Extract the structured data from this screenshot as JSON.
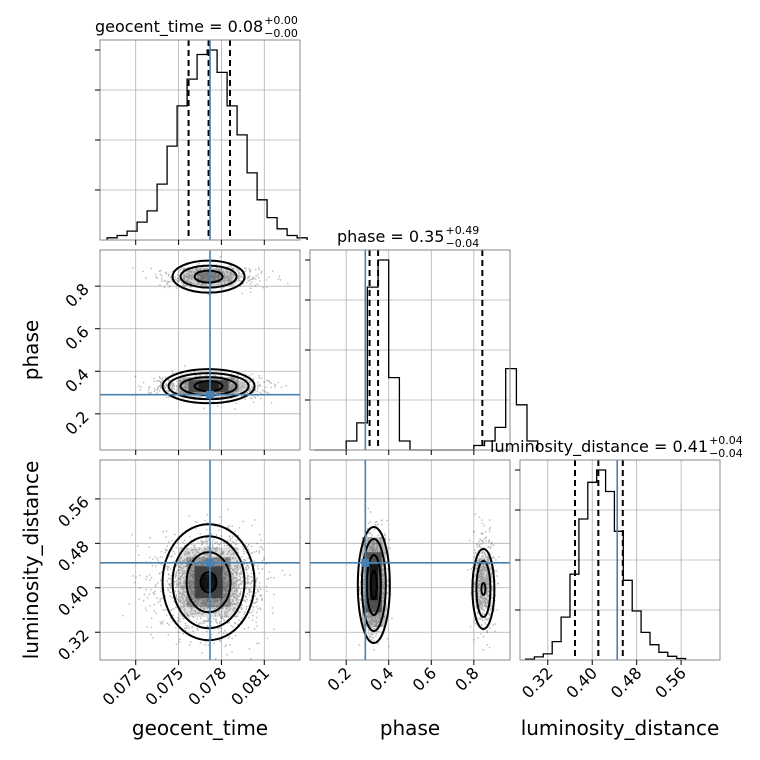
{
  "chart_data": {
    "type": "corner",
    "parameters": [
      "geocent_time",
      "phase",
      "luminosity_distance"
    ],
    "truth": {
      "geocent_time": 0.0772,
      "phase": 0.29,
      "luminosity_distance": 0.445
    },
    "colors": {
      "truth": "#4682b4",
      "hist": "#000000",
      "grid": "#b0b0b0",
      "scatter": "#333333"
    },
    "titles": [
      {
        "param": "geocent_time",
        "prefix": "geocent_time = 0.08",
        "plus": "+0.00",
        "minus": "−0.00"
      },
      {
        "param": "phase",
        "prefix": "phase = 0.35",
        "plus": "+0.49",
        "minus": "−0.04"
      },
      {
        "param": "luminosity_distance",
        "prefix": "luminosity_distance = 0.41",
        "plus": "+0.04",
        "minus": "−0.04"
      }
    ],
    "ranges": {
      "geocent_time": [
        0.0695,
        0.0835
      ],
      "phase": [
        0.03,
        0.97
      ],
      "luminosity_distance": [
        0.27,
        0.63
      ]
    },
    "ticks": {
      "geocent_time": [
        "0.072",
        "0.075",
        "0.078",
        "0.081"
      ],
      "phase_x": [
        "0.2",
        "0.4",
        "0.6",
        "0.8"
      ],
      "phase_y": [
        "0.2",
        "0.4",
        "0.6",
        "0.8"
      ],
      "luminosity_distance": [
        "0.32",
        "0.40",
        "0.48",
        "0.56"
      ]
    },
    "xlabels": [
      "geocent_time",
      "phase",
      "luminosity_distance"
    ],
    "ylabels": [
      "phase",
      "luminosity_distance"
    ],
    "marginals": {
      "geocent_time": {
        "edges_start": 0.07,
        "bin_width": 0.0007,
        "counts": [
          1,
          2,
          4,
          8,
          13,
          25,
          42,
          60,
          72,
          83,
          85,
          75,
          60,
          47,
          30,
          18,
          10,
          5,
          2,
          1
        ],
        "quantiles": [
          0.0757,
          0.0771,
          0.0786
        ]
      },
      "phase": {
        "edges_start": 0.05,
        "bin_width": 0.05,
        "counts": [
          0,
          0,
          0,
          2,
          6,
          36,
          42,
          16,
          2,
          0,
          0,
          0,
          0,
          0,
          0,
          1,
          2,
          5,
          18,
          10,
          2
        ],
        "quantiles": [
          0.31,
          0.35,
          0.84
        ]
      },
      "luminosity_distance": {
        "edges_start": 0.28,
        "bin_width": 0.016,
        "counts": [
          0.3,
          1,
          2,
          6,
          14,
          28,
          46,
          58,
          62,
          55,
          42,
          26,
          16,
          9,
          5,
          2.5,
          1.2,
          0.5
        ],
        "quantiles": [
          0.369,
          0.411,
          0.455
        ]
      }
    },
    "modes": [
      {
        "phase_center": 0.33,
        "phase_sd": 0.025,
        "weight": 0.72
      },
      {
        "phase_center": 0.845,
        "phase_sd": 0.025,
        "weight": 0.28
      }
    ],
    "contour_levels": [
      "0.5",
      "1.0",
      "1.5",
      "2.0"
    ]
  }
}
